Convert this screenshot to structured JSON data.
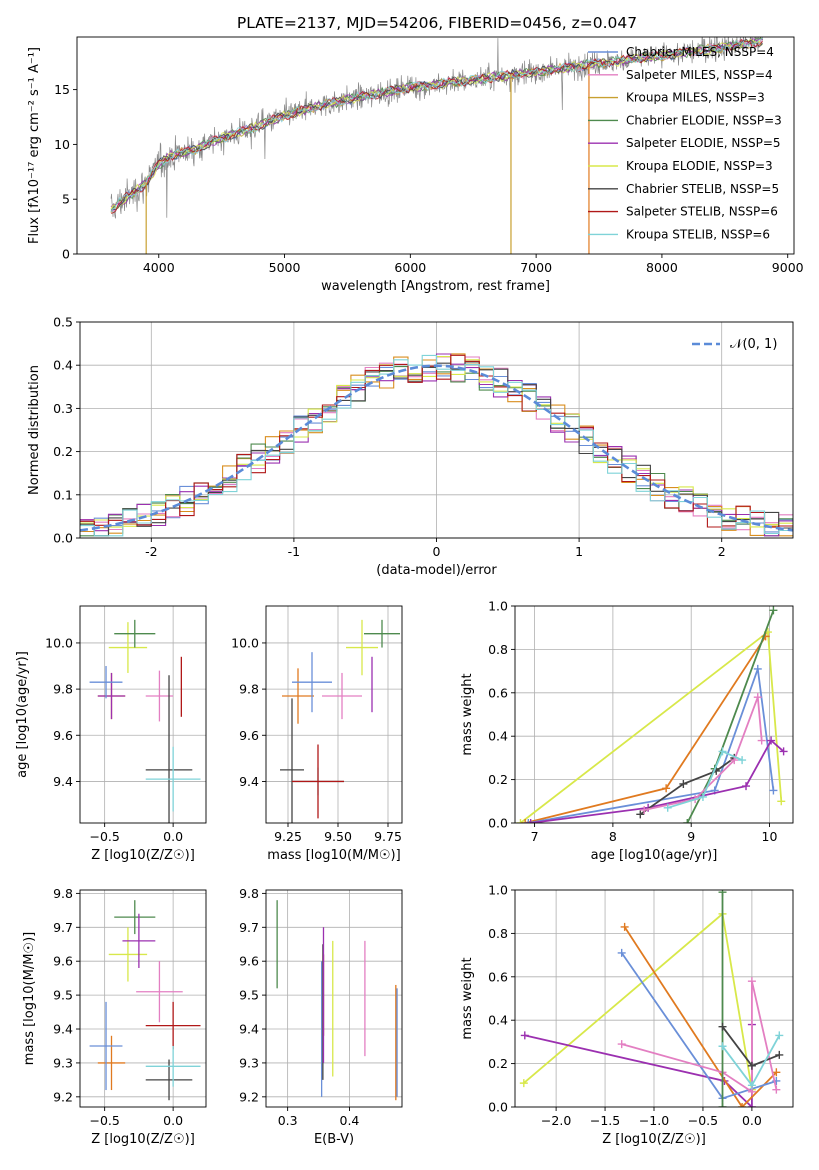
{
  "figure_title": "PLATE=2137, MJD=54206, FIBERID=0456, z=0.047",
  "series": [
    {
      "key": "chab_miles",
      "color": "#6a8fd8"
    },
    {
      "key": "salp_miles",
      "color": "#e37fc2"
    },
    {
      "key": "krou_miles",
      "color": "#d98e1f"
    },
    {
      "key": "chab_elodie",
      "color": "#4e8a4e"
    },
    {
      "key": "salp_elodie",
      "color": "#9b30b0"
    },
    {
      "key": "krou_elodie",
      "color": "#d8e84a"
    },
    {
      "key": "chab_stelib",
      "color": "#444444"
    },
    {
      "key": "salp_stelib",
      "color": "#b01818"
    },
    {
      "key": "krou_stelib",
      "color": "#7fd3d8"
    },
    {
      "key": "orange",
      "color": "#e07a20"
    }
  ],
  "chart_data": [
    {
      "id": "spectrum",
      "type": "line",
      "title": "PLATE=2137, MJD=54206, FIBERID=0456, z=0.047",
      "xlabel": "wavelength [Angstrom, rest frame]",
      "ylabel": "Flux [fλ10⁻¹⁷ erg cm⁻² s⁻¹ A⁻¹]",
      "xlim": [
        3350,
        9050
      ],
      "ylim": [
        0,
        19.8
      ],
      "xticks": [
        4000,
        5000,
        6000,
        7000,
        8000,
        9000
      ],
      "yticks": [
        0,
        5,
        10,
        15
      ],
      "grid": false,
      "legend_position": "top-right",
      "legend": [
        {
          "label": "Chabrier MILES, NSSP=4",
          "color": "#6a8fd8"
        },
        {
          "label": "Salpeter MILES, NSSP=4",
          "color": "#e37fc2"
        },
        {
          "label": "Kroupa MILES, NSSP=3",
          "color": "#c8a030"
        },
        {
          "label": "Chabrier ELODIE, NSSP=3",
          "color": "#4e8a4e"
        },
        {
          "label": "Salpeter ELODIE, NSSP=5",
          "color": "#9b30b0"
        },
        {
          "label": "Kroupa ELODIE, NSSP=3",
          "color": "#d8e84a"
        },
        {
          "label": "Chabrier STELIB, NSSP=5",
          "color": "#444444"
        },
        {
          "label": "Salpeter STELIB, NSSP=6",
          "color": "#b01818"
        },
        {
          "label": "Kroupa STELIB, NSSP=6",
          "color": "#7fd3d8"
        }
      ],
      "continuum": [
        [
          3620,
          4.0
        ],
        [
          3700,
          4.8
        ],
        [
          3800,
          5.6
        ],
        [
          3900,
          6.5
        ],
        [
          4000,
          8.2
        ],
        [
          4100,
          9.0
        ],
        [
          4200,
          9.3
        ],
        [
          4300,
          9.6
        ],
        [
          4500,
          10.6
        ],
        [
          4700,
          11.3
        ],
        [
          5000,
          12.6
        ],
        [
          5200,
          13.3
        ],
        [
          5500,
          14.1
        ],
        [
          6000,
          15.2
        ],
        [
          6500,
          15.9
        ],
        [
          7000,
          16.6
        ],
        [
          7500,
          17.4
        ],
        [
          8000,
          18.1
        ],
        [
          8500,
          18.9
        ],
        [
          8800,
          19.4
        ]
      ],
      "drop_lines": [
        {
          "x": 3900,
          "color": "#c8a030"
        },
        {
          "x": 6800,
          "color": "#c8a030"
        },
        {
          "x": 7420,
          "color": "#e07a20"
        }
      ]
    },
    {
      "id": "residuals",
      "type": "histogram",
      "xlabel": "(data-model)/error",
      "ylabel": "Normed distribution",
      "xlim": [
        -2.5,
        2.5
      ],
      "ylim": [
        0,
        0.5
      ],
      "xticks": [
        -2,
        -1,
        0,
        1,
        2
      ],
      "yticks": [
        0.0,
        0.1,
        0.2,
        0.3,
        0.4,
        0.5
      ],
      "grid": true,
      "legend_position": "top-right",
      "legend": [
        {
          "label": "𝒩(0, 1)",
          "color": "#5b8bd8",
          "style": "dashed"
        }
      ],
      "bin_width": 0.1
    },
    {
      "id": "age_vs_Z",
      "type": "errorbar",
      "xlabel": "Z [log10(Z/Z☉)]",
      "ylabel": "age  [log10(age/yr)]",
      "xlim": [
        -0.68,
        0.24
      ],
      "ylim": [
        9.22,
        10.16
      ],
      "xticks": [
        -0.5,
        0.0
      ],
      "xtick_labels": [
        "−0.5",
        "0.0"
      ],
      "yticks": [
        9.4,
        9.6,
        9.8,
        10.0
      ],
      "grid": true,
      "points": [
        {
          "x": -0.45,
          "y": 9.77,
          "xerr": 0.1,
          "yerr": 0.1,
          "color": "#e07a20"
        },
        {
          "x": -0.45,
          "y": 9.77,
          "xerr": 0.1,
          "yerr": 0.1,
          "color": "#9b30b0"
        },
        {
          "x": -0.49,
          "y": 9.83,
          "xerr": 0.12,
          "yerr": 0.07,
          "color": "#6a8fd8"
        },
        {
          "x": -0.33,
          "y": 9.98,
          "xerr": 0.14,
          "yerr": 0.11,
          "color": "#d8e84a"
        },
        {
          "x": -0.28,
          "y": 10.04,
          "xerr": 0.15,
          "yerr": 0.06,
          "color": "#4e8a4e"
        },
        {
          "x": -0.1,
          "y": 9.77,
          "xerr": 0.1,
          "yerr": 0.11,
          "color": "#e37fc2"
        },
        {
          "x": 0.06,
          "y": 9.81,
          "xerr": 0.0,
          "yerr": 0.13,
          "color": "#b01818"
        },
        {
          "x": -0.03,
          "y": 9.45,
          "xerr": 0.17,
          "yerr": 0.41,
          "color": "#444444"
        },
        {
          "x": 0.0,
          "y": 9.41,
          "xerr": 0.2,
          "yerr": 0.14,
          "color": "#7fd3d8"
        }
      ]
    },
    {
      "id": "age_vs_mass",
      "type": "errorbar",
      "xlabel": "mass [log10(M/M☉)]",
      "ylabel": "",
      "xlim": [
        9.14,
        9.82
      ],
      "ylim": [
        9.22,
        10.16
      ],
      "xticks": [
        9.25,
        9.5,
        9.75
      ],
      "xtick_labels": [
        "9.25",
        "9.50",
        "9.75"
      ],
      "yticks": [
        9.4,
        9.6,
        9.8,
        10.0
      ],
      "grid": true,
      "points": [
        {
          "x": 9.3,
          "y": 9.77,
          "xerr": 0.08,
          "yerr": 0.12,
          "color": "#e07a20"
        },
        {
          "x": 9.37,
          "y": 9.83,
          "xerr": 0.1,
          "yerr": 0.13,
          "color": "#6a8fd8"
        },
        {
          "x": 9.52,
          "y": 9.77,
          "xerr": 0.1,
          "yerr": 0.1,
          "color": "#e37fc2"
        },
        {
          "x": 9.62,
          "y": 9.98,
          "xerr": 0.08,
          "yerr": 0.12,
          "color": "#d8e84a"
        },
        {
          "x": 9.72,
          "y": 10.04,
          "xerr": 0.09,
          "yerr": 0.06,
          "color": "#4e8a4e"
        },
        {
          "x": 9.67,
          "y": 9.82,
          "xerr": 0.0,
          "yerr": 0.12,
          "color": "#9b30b0"
        },
        {
          "x": 9.27,
          "y": 9.45,
          "xerr": 0.06,
          "yerr": 0.31,
          "color": "#444444"
        },
        {
          "x": 9.4,
          "y": 9.4,
          "xerr": 0.13,
          "yerr": 0.06,
          "color": "#7fd3d8"
        },
        {
          "x": 9.4,
          "y": 9.4,
          "xerr": 0.13,
          "yerr": 0.16,
          "color": "#b01818"
        }
      ]
    },
    {
      "id": "weight_vs_age",
      "type": "line",
      "xlabel": "age  [log10(age/yr)]",
      "ylabel": "mass weight",
      "xlim": [
        6.75,
        10.3
      ],
      "ylim": [
        0,
        1.0
      ],
      "xticks": [
        7,
        8,
        9,
        10
      ],
      "yticks": [
        0.0,
        0.2,
        0.4,
        0.6,
        0.8,
        1.0
      ],
      "grid": true,
      "series": [
        {
          "color": "#d8e84a",
          "points": [
            [
              6.82,
              0.0
            ],
            [
              9.98,
              0.88
            ],
            [
              10.15,
              0.1
            ]
          ]
        },
        {
          "color": "#e07a20",
          "points": [
            [
              6.88,
              0.0
            ],
            [
              8.68,
              0.16
            ],
            [
              9.95,
              0.86
            ]
          ]
        },
        {
          "color": "#6a8fd8",
          "points": [
            [
              6.92,
              0.0
            ],
            [
              9.3,
              0.15
            ],
            [
              9.85,
              0.71
            ],
            [
              10.05,
              0.15
            ]
          ]
        },
        {
          "color": "#4e8a4e",
          "points": [
            [
              8.95,
              0.0
            ],
            [
              9.3,
              0.25
            ],
            [
              10.05,
              0.98
            ]
          ]
        },
        {
          "color": "#9b30b0",
          "points": [
            [
              6.95,
              0.0
            ],
            [
              8.45,
              0.07
            ],
            [
              9.7,
              0.17
            ],
            [
              10.02,
              0.38
            ],
            [
              10.18,
              0.33
            ]
          ]
        },
        {
          "color": "#444444",
          "points": [
            [
              8.35,
              0.04
            ],
            [
              8.9,
              0.18
            ],
            [
              9.32,
              0.24
            ],
            [
              9.55,
              0.3
            ]
          ]
        },
        {
          "color": "#e37fc2",
          "points": [
            [
              8.4,
              0.06
            ],
            [
              9.05,
              0.11
            ],
            [
              9.55,
              0.29
            ],
            [
              9.85,
              0.58
            ],
            [
              9.9,
              0.38
            ]
          ]
        },
        {
          "color": "#7fd3d8",
          "points": [
            [
              8.7,
              0.07
            ],
            [
              9.15,
              0.12
            ],
            [
              9.4,
              0.33
            ],
            [
              9.65,
              0.29
            ]
          ]
        }
      ]
    },
    {
      "id": "mass_vs_Z",
      "type": "errorbar",
      "xlabel": "Z [log10(Z/Z☉)]",
      "ylabel": "mass [log10(M/M☉)]",
      "xlim": [
        -0.68,
        0.24
      ],
      "ylim": [
        9.17,
        9.81
      ],
      "xticks": [
        -0.5,
        0.0
      ],
      "xtick_labels": [
        "−0.5",
        "0.0"
      ],
      "yticks": [
        9.2,
        9.3,
        9.4,
        9.5,
        9.6,
        9.7,
        9.8
      ],
      "grid": true,
      "points": [
        {
          "x": -0.45,
          "y": 9.3,
          "xerr": 0.1,
          "yerr": 0.08,
          "color": "#e07a20"
        },
        {
          "x": -0.49,
          "y": 9.35,
          "xerr": 0.12,
          "yerr": 0.13,
          "color": "#6a8fd8"
        },
        {
          "x": -0.33,
          "y": 9.62,
          "xerr": 0.14,
          "yerr": 0.08,
          "color": "#d8e84a"
        },
        {
          "x": -0.28,
          "y": 9.73,
          "xerr": 0.15,
          "yerr": 0.05,
          "color": "#4e8a4e"
        },
        {
          "x": -0.25,
          "y": 9.66,
          "xerr": 0.12,
          "yerr": 0.08,
          "color": "#9b30b0"
        },
        {
          "x": -0.1,
          "y": 9.51,
          "xerr": 0.17,
          "yerr": 0.09,
          "color": "#e37fc2"
        },
        {
          "x": 0.0,
          "y": 9.41,
          "xerr": 0.2,
          "yerr": 0.07,
          "color": "#b01818"
        },
        {
          "x": -0.03,
          "y": 9.25,
          "xerr": 0.17,
          "yerr": 0.06,
          "color": "#444444"
        },
        {
          "x": 0.0,
          "y": 9.29,
          "xerr": 0.2,
          "yerr": 0.06,
          "color": "#7fd3d8"
        }
      ]
    },
    {
      "id": "mass_vs_EBV",
      "type": "errorbar",
      "xlabel": "E(B-V)",
      "ylabel": "",
      "xlim": [
        0.265,
        0.485
      ],
      "ylim": [
        9.17,
        9.81
      ],
      "xticks": [
        0.3,
        0.4
      ],
      "xtick_labels": [
        "0.3",
        "0.4"
      ],
      "yticks": [
        9.2,
        9.3,
        9.4,
        9.5,
        9.6,
        9.7,
        9.8
      ],
      "grid": true,
      "points": [
        {
          "x": 0.283,
          "y": 9.65,
          "xerr": 0,
          "yerr": 0.13,
          "color": "#4e8a4e"
        },
        {
          "x": 0.355,
          "y": 9.4,
          "xerr": 0,
          "yerr": 0.2,
          "color": "#6a8fd8"
        },
        {
          "x": 0.357,
          "y": 9.45,
          "xerr": 0,
          "yerr": 0.2,
          "color": "#444444"
        },
        {
          "x": 0.358,
          "y": 9.5,
          "xerr": 0,
          "yerr": 0.12,
          "color": "#b01818"
        },
        {
          "x": 0.358,
          "y": 9.5,
          "xerr": 0,
          "yerr": 0.2,
          "color": "#9b30b0"
        },
        {
          "x": 0.373,
          "y": 9.46,
          "xerr": 0,
          "yerr": 0.2,
          "color": "#d8e84a"
        },
        {
          "x": 0.425,
          "y": 9.49,
          "xerr": 0,
          "yerr": 0.17,
          "color": "#e37fc2"
        },
        {
          "x": 0.475,
          "y": 9.36,
          "xerr": 0,
          "yerr": 0.17,
          "color": "#e07a20"
        },
        {
          "x": 0.477,
          "y": 9.36,
          "xerr": 0,
          "yerr": 0.16,
          "color": "#6a8fd8"
        }
      ]
    },
    {
      "id": "weight_vs_Z",
      "type": "line",
      "xlabel": "Z [log10(Z/Z☉)]",
      "ylabel": "mass weight",
      "xlim": [
        -2.42,
        0.42
      ],
      "ylim": [
        0,
        1.0
      ],
      "xticks": [
        -2.0,
        -1.5,
        -1.0,
        -0.5,
        0.0
      ],
      "xtick_labels": [
        "−2.0",
        "−1.5",
        "−1.0",
        "−0.5",
        "0.0"
      ],
      "yticks": [
        0.0,
        0.2,
        0.4,
        0.6,
        0.8,
        1.0
      ],
      "grid": true,
      "series": [
        {
          "color": "#d8e84a",
          "points": [
            [
              -2.33,
              0.11
            ],
            [
              -0.3,
              0.89
            ],
            [
              0.0,
              0.08
            ]
          ]
        },
        {
          "color": "#9b30b0",
          "points": [
            [
              -2.32,
              0.33
            ],
            [
              -0.28,
              0.12
            ],
            [
              0.0,
              0.0
            ],
            [
              0.0,
              0.38
            ]
          ]
        },
        {
          "color": "#e07a20",
          "points": [
            [
              -1.3,
              0.83
            ],
            [
              -0.1,
              0.0
            ],
            [
              0.25,
              0.16
            ]
          ]
        },
        {
          "color": "#6a8fd8",
          "points": [
            [
              -1.33,
              0.71
            ],
            [
              -0.3,
              0.04
            ],
            [
              0.25,
              0.12
            ]
          ]
        },
        {
          "color": "#e37fc2",
          "points": [
            [
              -1.33,
              0.29
            ],
            [
              -0.3,
              0.16
            ],
            [
              0.0,
              0.07
            ],
            [
              0.0,
              0.58
            ],
            [
              0.25,
              0.08
            ]
          ]
        },
        {
          "color": "#4e8a4e",
          "points": [
            [
              -0.3,
              0.99
            ],
            [
              -0.3,
              0.0
            ]
          ]
        },
        {
          "color": "#444444",
          "points": [
            [
              -0.3,
              0.37
            ],
            [
              0.0,
              0.19
            ],
            [
              0.28,
              0.24
            ]
          ]
        },
        {
          "color": "#7fd3d8",
          "points": [
            [
              -0.3,
              0.28
            ],
            [
              0.0,
              0.1
            ],
            [
              0.28,
              0.33
            ]
          ]
        }
      ]
    }
  ]
}
